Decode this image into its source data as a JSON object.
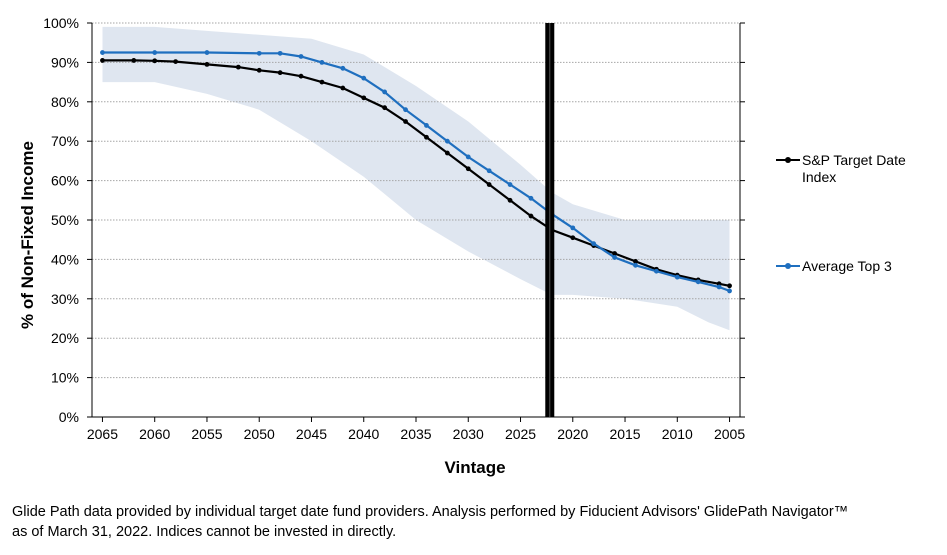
{
  "chart_data": {
    "type": "line",
    "xlabel": "Vintage",
    "ylabel": "% of Non-Fixed Income",
    "xlim": [
      2066,
      2004
    ],
    "ylim": [
      0,
      100
    ],
    "x_ticks": [
      "2065",
      "2060",
      "2055",
      "2050",
      "2045",
      "2040",
      "2035",
      "2030",
      "2025",
      "2020",
      "2015",
      "2010",
      "2005"
    ],
    "y_ticks": [
      "0%",
      "10%",
      "20%",
      "30%",
      "40%",
      "50%",
      "60%",
      "70%",
      "80%",
      "90%",
      "100%"
    ],
    "legend_position": "right",
    "grid": true,
    "vertical_marker_x": 2022.2,
    "band": {
      "color": "#dfe6f0",
      "x": [
        2065,
        2060,
        2055,
        2050,
        2045,
        2040,
        2035,
        2030,
        2025,
        2022,
        2020,
        2015,
        2010,
        2007,
        2005
      ],
      "upper": [
        99,
        99,
        98,
        97,
        96,
        92,
        84,
        75,
        64,
        57,
        54,
        50,
        50,
        50,
        50
      ],
      "lower": [
        85,
        85,
        82,
        78,
        70,
        61,
        50,
        42,
        35,
        31,
        31,
        30,
        28,
        24,
        22
      ]
    },
    "series": [
      {
        "name": "S&P Target Date Index",
        "color": "#000000",
        "x": [
          2065,
          2062,
          2060,
          2058,
          2055,
          2052,
          2050,
          2048,
          2046,
          2044,
          2042,
          2040,
          2038,
          2036,
          2034,
          2032,
          2030,
          2028,
          2026,
          2024,
          2022,
          2020,
          2018,
          2016,
          2014,
          2012,
          2010,
          2008,
          2006,
          2005
        ],
        "values": [
          90.5,
          90.5,
          90.4,
          90.2,
          89.5,
          88.8,
          88.0,
          87.4,
          86.5,
          85.0,
          83.5,
          81.0,
          78.5,
          75.0,
          71.0,
          67.0,
          63.0,
          59.0,
          55.0,
          51.0,
          47.5,
          45.5,
          43.5,
          41.5,
          39.5,
          37.5,
          36.0,
          34.8,
          33.8,
          33.3
        ]
      },
      {
        "name": "Average Top 3",
        "color": "#1f6fbf",
        "x": [
          2065,
          2060,
          2055,
          2050,
          2048,
          2046,
          2044,
          2042,
          2040,
          2038,
          2036,
          2034,
          2032,
          2030,
          2028,
          2026,
          2024,
          2022,
          2020,
          2018,
          2016,
          2014,
          2012,
          2010,
          2008,
          2006,
          2005
        ],
        "values": [
          92.5,
          92.5,
          92.5,
          92.3,
          92.3,
          91.5,
          90.0,
          88.5,
          86.0,
          82.5,
          78.0,
          74.0,
          70.0,
          66.0,
          62.5,
          59.0,
          55.5,
          51.5,
          48.0,
          44.0,
          40.5,
          38.5,
          37.0,
          35.5,
          34.3,
          33.0,
          32.0
        ]
      }
    ],
    "legend": [
      {
        "label_line1": "S&P Target Date",
        "label_line2": "Index"
      },
      {
        "label_line1": "Average Top 3",
        "label_line2": ""
      }
    ]
  },
  "footnote_line1": "Glide Path data provided by individual target date fund providers. Analysis performed by Fiducient Advisors' GlidePath Navigator™",
  "footnote_line2": "as of March 31, 2022. Indices cannot be invested in directly."
}
